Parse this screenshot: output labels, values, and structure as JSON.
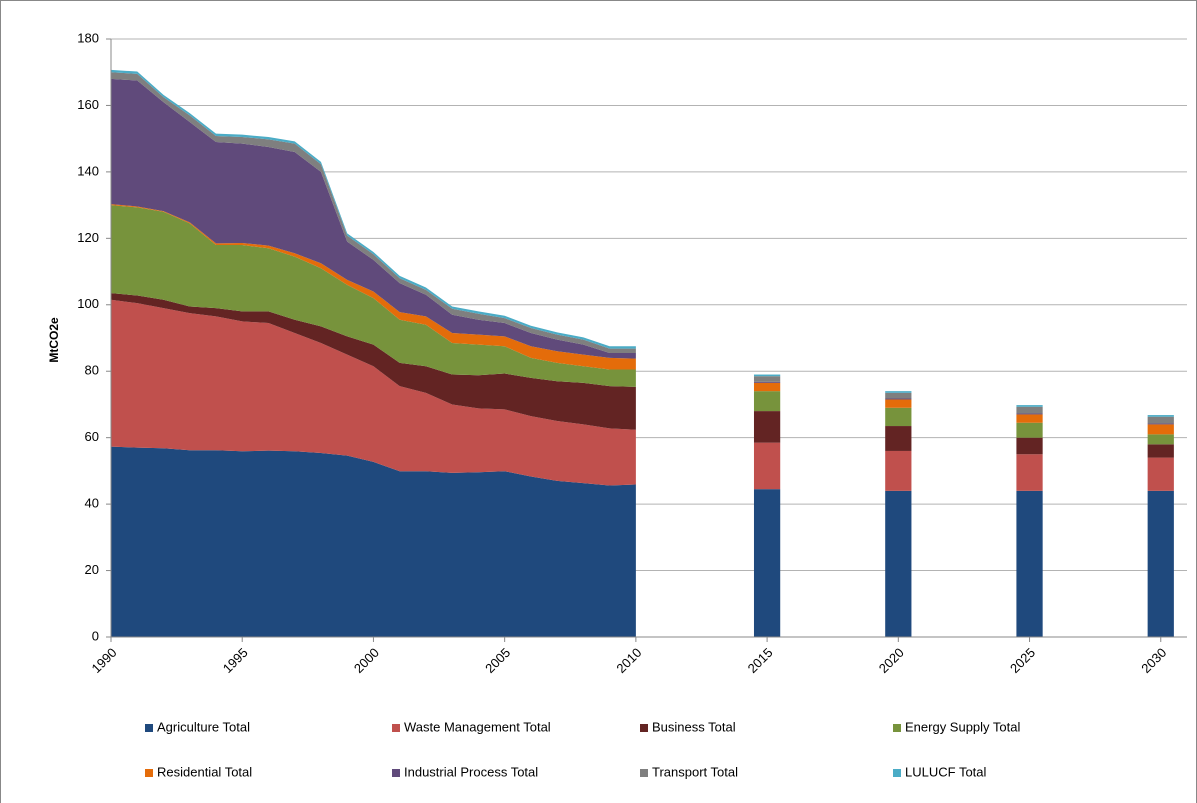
{
  "chart_data": {
    "type": "area",
    "stacked": true,
    "y_label": "MtCO2e",
    "x": [
      1990,
      1991,
      1992,
      1993,
      1994,
      1995,
      1996,
      1997,
      1998,
      1999,
      2000,
      2001,
      2002,
      2003,
      2004,
      2005,
      2006,
      2007,
      2008,
      2009,
      2010,
      2015,
      2020,
      2025,
      2030
    ],
    "xlim": [
      1990,
      2031
    ],
    "xticks": [
      1990,
      1995,
      2000,
      2005,
      2010,
      2015,
      2020,
      2025,
      2030
    ],
    "ylim": [
      0,
      180
    ],
    "yticks": [
      0,
      20,
      40,
      60,
      80,
      100,
      120,
      140,
      160,
      180
    ],
    "grid": true,
    "legend": "bottom",
    "series": [
      {
        "name": "Agriculture Total",
        "color": "#1f497d",
        "values": [
          57.3,
          57,
          56.8,
          56.2,
          56.2,
          55.9,
          56.1,
          55.9,
          55.4,
          54.6,
          52.7,
          49.9,
          49.9,
          49.4,
          49.6,
          49.9,
          48.3,
          47,
          46.3,
          45.6,
          45.9,
          44.5,
          44,
          44,
          44
        ]
      },
      {
        "name": "Waste Management Total",
        "color": "#c0504d",
        "values": [
          44.2,
          43.5,
          42.2,
          41.3,
          40.3,
          39.1,
          38.4,
          35.6,
          33.1,
          30.4,
          28.8,
          25.6,
          23.6,
          20.6,
          19.2,
          18.6,
          18.2,
          18,
          17.7,
          17.2,
          16.5,
          14,
          12,
          11,
          10
        ]
      },
      {
        "name": "Business Total",
        "color": "#632423",
        "values": [
          2,
          2.3,
          2.5,
          2,
          2.5,
          3,
          3.5,
          4,
          5,
          5.5,
          6.5,
          7,
          8,
          9,
          10,
          10.8,
          11.5,
          12,
          12.5,
          12.7,
          12.9,
          9.5,
          7.5,
          5,
          4
        ]
      },
      {
        "name": "Energy Supply Total",
        "color": "#77933c",
        "values": [
          26.5,
          26.5,
          26.5,
          25,
          19,
          20,
          19,
          19,
          17.5,
          15.5,
          14,
          13,
          12.5,
          9.5,
          9.2,
          8.2,
          6,
          5.5,
          5,
          5,
          5.2,
          6,
          5.5,
          4.5,
          3
        ]
      },
      {
        "name": "Residential Total",
        "color": "#e46c0a",
        "values": [
          0.3,
          0.3,
          0.2,
          0.3,
          0.5,
          0.6,
          0.8,
          1,
          1.5,
          1.5,
          2,
          2.3,
          2.5,
          3,
          3,
          3,
          3.5,
          3.5,
          3.5,
          3.5,
          3.3,
          2.5,
          2.5,
          2.5,
          3
        ]
      },
      {
        "name": "Industrial Process Total",
        "color": "#604a7b",
        "values": [
          37.7,
          37.9,
          32.8,
          30.2,
          30.5,
          29.9,
          29.7,
          30.5,
          27.5,
          11.5,
          9.5,
          8.7,
          6.5,
          5.5,
          4.5,
          4,
          4,
          3.5,
          3,
          1.5,
          1.7,
          0.3,
          0.3,
          0.3,
          0.3
        ]
      },
      {
        "name": "Transport Total",
        "color": "#7f7f7f",
        "values": [
          2,
          2,
          1.5,
          2,
          1.8,
          2,
          2.3,
          2.5,
          2.3,
          1.8,
          1.7,
          1.5,
          1.5,
          1.8,
          1.8,
          1.5,
          1.5,
          1.5,
          1.5,
          1.3,
          1.3,
          1.7,
          1.7,
          2,
          2
        ]
      },
      {
        "name": "LULUCF Total",
        "color": "#4bacc6",
        "values": [
          0.7,
          0.7,
          0.7,
          0.7,
          0.7,
          0.7,
          0.7,
          0.7,
          0.7,
          0.7,
          0.7,
          0.7,
          0.7,
          0.7,
          0.7,
          0.7,
          0.7,
          0.7,
          0.7,
          0.7,
          0.7,
          0.5,
          0.5,
          0.5,
          0.5
        ]
      }
    ]
  }
}
